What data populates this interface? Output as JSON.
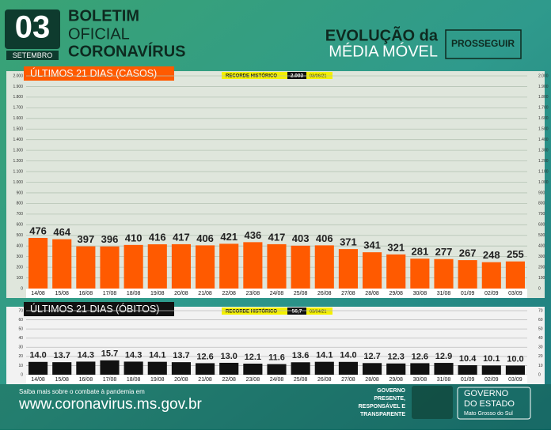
{
  "header": {
    "day": "03",
    "month": "SETEMBRO",
    "line1": "BOLETIM",
    "line2": "OFICIAL",
    "line3": "CORONAVÍRUS",
    "evo1": "EVOLUÇÃO da",
    "evo2": "MÉDIA MÓVEL",
    "brand": "PROSSEGUIR"
  },
  "footer": {
    "note": "Saiba mais sobre o combate à pandemia em",
    "url": "www.coronavirus.ms.gov.br",
    "slogan1": "GOVERNO",
    "slogan2": "PRESENTE,",
    "slogan3": "RESPONSÁVEL E",
    "slogan4": "TRANSPARENTE",
    "gov1": "GOVERNO",
    "gov2": "DO ESTADO",
    "gov3": "Mato Grosso do Sul"
  },
  "chart_data": [
    {
      "type": "bar",
      "title": "ÚLTIMOS 21 DIAS (CASOS)",
      "record_label": "RECORDE HISTÓRICO",
      "record_value": "2.003",
      "record_date": "03/06/21",
      "color": "#ff5a00",
      "categories": [
        "14/08",
        "15/08",
        "16/08",
        "17/08",
        "18/08",
        "19/08",
        "20/08",
        "21/08",
        "22/08",
        "23/08",
        "24/08",
        "25/08",
        "26/08",
        "27/08",
        "28/08",
        "29/08",
        "30/08",
        "31/08",
        "01/09",
        "02/09",
        "03/09"
      ],
      "values": [
        476,
        464,
        397,
        396,
        410,
        416,
        417,
        406,
        421,
        436,
        417,
        403,
        406,
        371,
        341,
        321,
        281,
        277,
        267,
        248,
        255
      ],
      "ylim": [
        0,
        2000
      ],
      "yticks": [
        0,
        100,
        200,
        300,
        400,
        500,
        600,
        700,
        800,
        900,
        {
          "value": 1000,
          "label": "1.000"
        },
        {
          "value": 1100,
          "label": "1.100"
        },
        {
          "value": 1200,
          "label": "1.200"
        },
        {
          "value": 1300,
          "label": "1.300"
        },
        {
          "value": 1400,
          "label": "1.400"
        },
        {
          "value": 1500,
          "label": "1.500"
        },
        {
          "value": 1600,
          "label": "1.600"
        },
        {
          "value": 1700,
          "label": "1.700"
        },
        {
          "value": 1800,
          "label": "1.800"
        },
        {
          "value": 1900,
          "label": "1.900"
        },
        {
          "value": 2000,
          "label": "2.000"
        }
      ],
      "grid": true
    },
    {
      "type": "bar",
      "title": "ÚLTIMOS 21 DIAS (ÓBITOS)",
      "record_label": "RECORDE HISTÓRICO",
      "record_value": "56,7",
      "record_date": "03/04/21",
      "color": "#111111",
      "categories": [
        "14/08",
        "15/08",
        "16/08",
        "17/08",
        "18/08",
        "19/08",
        "20/08",
        "21/08",
        "22/08",
        "23/08",
        "24/08",
        "25/08",
        "26/08",
        "27/08",
        "28/08",
        "29/08",
        "30/08",
        "31/08",
        "01/09",
        "02/09",
        "03/09"
      ],
      "values": [
        14,
        13.7,
        14.3,
        15.7,
        14.3,
        14.1,
        13.7,
        12.6,
        13,
        12.1,
        11.6,
        13.6,
        14.1,
        14,
        12.7,
        12.3,
        12.6,
        12.9,
        10.4,
        10.1,
        10
      ],
      "value_labels": [
        "14.0",
        "13.7",
        "14.3",
        "15.7",
        "14.3",
        "14.1",
        "13.7",
        "12.6",
        "13.0",
        "12.1",
        "11.6",
        "13.6",
        "14.1",
        "14.0",
        "12.7",
        "12.3",
        "12.6",
        "12.9",
        "10.4",
        "10.1",
        "10.0"
      ],
      "ylim": [
        0,
        70
      ],
      "yticks": [
        0,
        10,
        20,
        30,
        40,
        50,
        60,
        70
      ],
      "grid": true
    }
  ]
}
